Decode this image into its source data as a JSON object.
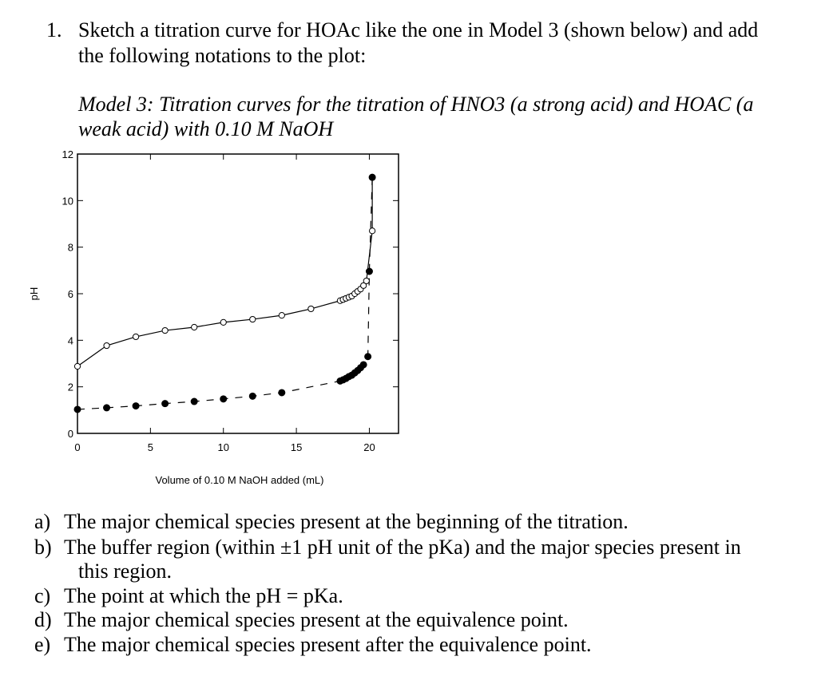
{
  "question": {
    "number": "1.",
    "lines": [
      "Sketch a titration curve for HOAc like the one in Model 3 (shown below) and add",
      "the following notations to the plot:"
    ]
  },
  "caption": [
    "Model 3: Titration curves for the titration of HNO3 (a strong acid) and HOAC (a",
    "weak acid) with 0.10 M NaOH"
  ],
  "chart_data": {
    "type": "line",
    "xlabel": "Volume of 0.10 M NaOH added (mL)",
    "ylabel": "pH",
    "xlim": [
      0,
      22
    ],
    "ylim": [
      0,
      12
    ],
    "xticks": [
      0,
      5,
      10,
      15,
      20
    ],
    "yticks": [
      0,
      2,
      4,
      6,
      8,
      10,
      12
    ],
    "series": [
      {
        "color": "#000000",
        "marker": "open",
        "line": "solid",
        "x": [
          0,
          2,
          4,
          6,
          8,
          10,
          12,
          14,
          16,
          18,
          18.2,
          18.4,
          18.6,
          18.8,
          19,
          19.2,
          19.4,
          19.6,
          19.8,
          20.2,
          20.2
        ],
        "values": [
          2.88,
          3.77,
          4.15,
          4.42,
          4.56,
          4.77,
          4.9,
          5.07,
          5.35,
          5.7,
          5.75,
          5.8,
          5.85,
          5.9,
          6.0,
          6.1,
          6.2,
          6.35,
          6.55,
          8.7,
          11.0
        ]
      },
      {
        "color": "#000000",
        "marker": "filled",
        "line": "dashed",
        "x": [
          0,
          2,
          4,
          6,
          8,
          10,
          12,
          14,
          18,
          18.2,
          18.4,
          18.6,
          18.8,
          19,
          19.2,
          19.4,
          19.6,
          19.9,
          20.0,
          20.2
        ],
        "values": [
          1.03,
          1.1,
          1.18,
          1.28,
          1.37,
          1.48,
          1.6,
          1.75,
          2.25,
          2.3,
          2.36,
          2.44,
          2.5,
          2.6,
          2.7,
          2.82,
          2.95,
          3.3,
          6.96,
          11.0
        ]
      }
    ]
  },
  "items": [
    {
      "label": "a)",
      "lines": [
        "The major chemical species present at the beginning of the titration."
      ]
    },
    {
      "label": "b)",
      "lines": [
        "The buffer region (within ±1 pH unit of the pKa) and the major species present in",
        "this region."
      ]
    },
    {
      "label": "c)",
      "lines": [
        "The point at which the pH = pKa."
      ]
    },
    {
      "label": "d)",
      "lines": [
        "The major chemical species present at the equivalence point."
      ]
    },
    {
      "label": "e)",
      "lines": [
        " The major chemical species present after the equivalence point."
      ]
    }
  ]
}
